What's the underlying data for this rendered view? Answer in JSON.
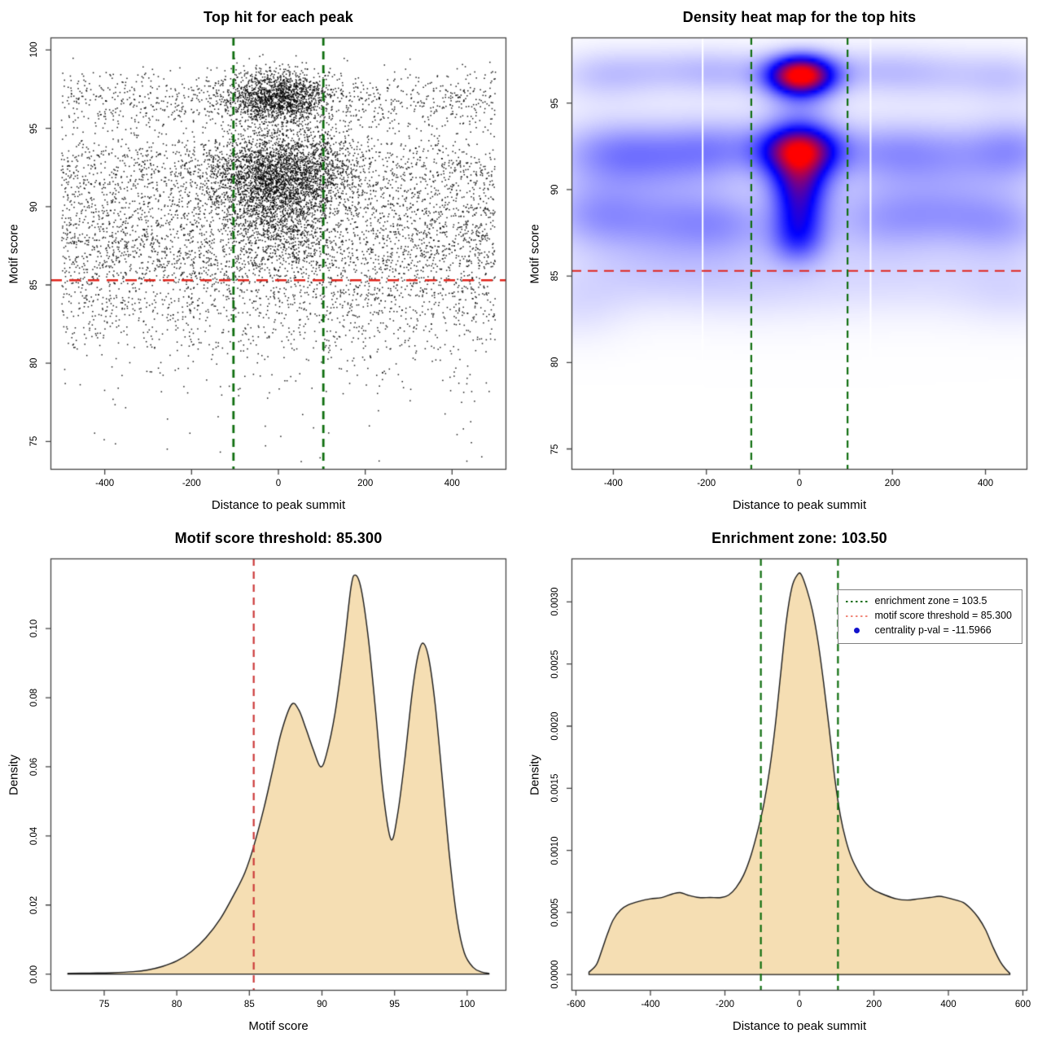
{
  "figure": {
    "background": "#FFFFFF",
    "kind": "R base-graphics 2x2 motif centrality diagnostic figure"
  },
  "colors": {
    "dark_green": "#0F6E0F",
    "red_line": "#E0251C",
    "brick_red": "#CC3B3B",
    "salmon": "#F2897C",
    "wheat_fill": "#F5DEB3",
    "curve_outline": "#1A1A1A",
    "axis": "#444444",
    "tick_text": "#111111",
    "legend_blue": "#1212CC",
    "point_black": "#000000",
    "stripe_white": "#FFFFFF",
    "heat_low": "#FFFFFF",
    "heat_mid": "#0000FF",
    "heat_high": "#FF0000"
  },
  "thresholds": {
    "motif_score_threshold": 85.3,
    "motif_score_threshold_label": "85.300",
    "enrichment_zone": 103.5,
    "enrichment_zone_label": "103.50",
    "centrality_p_val": -11.5966
  },
  "chart_data": [
    {
      "type": "scatter",
      "title": "Top hit for each peak",
      "xlabel": "Distance to peak summit",
      "ylabel": "Motif score",
      "xlim": [
        -525,
        525
      ],
      "ylim": [
        73.2,
        100.8
      ],
      "x_ticks": [
        {
          "v": -400,
          "label": "-400"
        },
        {
          "v": -200,
          "label": "-200"
        },
        {
          "v": 0,
          "label": "0"
        },
        {
          "v": 200,
          "label": "200"
        },
        {
          "v": 400,
          "label": "400"
        }
      ],
      "y_ticks": [
        {
          "v": 75,
          "label": "75"
        },
        {
          "v": 80,
          "label": "80"
        },
        {
          "v": 85,
          "label": "85"
        },
        {
          "v": 90,
          "label": "90"
        },
        {
          "v": 95,
          "label": "95"
        },
        {
          "v": 100,
          "label": "100"
        }
      ],
      "seed": 20,
      "point_size": 1.5,
      "clusters": [
        {
          "n": 1600,
          "x": [
            "n",
            0,
            58
          ],
          "y": [
            "n",
            96.9,
            0.85
          ]
        },
        {
          "n": 2600,
          "x": [
            "n",
            3,
            85
          ],
          "y": [
            "n",
            92.1,
            1.35
          ]
        },
        {
          "n": 800,
          "x": [
            "n",
            0,
            60
          ],
          "y": [
            "n",
            89.2,
            1.7
          ]
        },
        {
          "n": 950,
          "x": [
            "u",
            -500,
            500
          ],
          "y": [
            "n",
            96.8,
            0.95
          ]
        },
        {
          "n": 1450,
          "x": [
            "u",
            -500,
            500
          ],
          "y": [
            "n",
            92.2,
            1.35
          ]
        },
        {
          "n": 1900,
          "x": [
            "u",
            -500,
            500
          ],
          "y": [
            "n",
            88.4,
            1.65
          ]
        },
        {
          "n": 600,
          "x": [
            "u",
            -500,
            500
          ],
          "y": [
            "n",
            86.3,
            1.1
          ]
        },
        {
          "n": 700,
          "x": [
            "u",
            -500,
            500
          ],
          "y": [
            "n",
            84.1,
            1.35
          ]
        },
        {
          "n": 380,
          "x": [
            "u",
            -500,
            500
          ],
          "y": [
            "u",
            80.8,
            84.8
          ]
        },
        {
          "n": 130,
          "x": [
            "u",
            -500,
            500
          ],
          "y": [
            "u",
            78.0,
            81.2
          ]
        },
        {
          "n": 35,
          "x": [
            "u",
            -480,
            480
          ],
          "y": [
            "u",
            73.6,
            78.0
          ]
        }
      ],
      "hlines": [
        {
          "v": 85.3,
          "color": "red_line",
          "dash": [
            14,
            9
          ],
          "width": 2.6
        }
      ],
      "vlines": [
        {
          "v": -103.5,
          "color": "dark_green",
          "dash": [
            10,
            7
          ],
          "width": 2.8
        },
        {
          "v": 103.5,
          "color": "dark_green",
          "dash": [
            10,
            7
          ],
          "width": 2.8
        }
      ]
    },
    {
      "type": "heatmap",
      "title": "Density heat map for the top hits",
      "xlabel": "Distance to peak summit",
      "ylabel": "Motif score",
      "xlim": [
        -490,
        490
      ],
      "ylim": [
        73.8,
        98.8
      ],
      "x_ticks": [
        {
          "v": -400,
          "label": "-400"
        },
        {
          "v": -200,
          "label": "-200"
        },
        {
          "v": 0,
          "label": "0"
        },
        {
          "v": 200,
          "label": "200"
        },
        {
          "v": 400,
          "label": "400"
        }
      ],
      "y_ticks": [
        {
          "v": 75,
          "label": "75"
        },
        {
          "v": 80,
          "label": "80"
        },
        {
          "v": 85,
          "label": "85"
        },
        {
          "v": 90,
          "label": "90"
        },
        {
          "v": 95,
          "label": "95"
        }
      ],
      "color_scale": {
        "0": "white",
        "0.5": "blue",
        "1": "red",
        "gamma": 1.3
      },
      "hotspots_note": "kernel density blobs as [x, y, sigma_x, sigma_y, intensity]",
      "blobs": [
        [
          3,
          96.6,
          52,
          0.85,
          1.0
        ],
        [
          0,
          92.3,
          58,
          1.05,
          0.88
        ],
        [
          0,
          90.4,
          45,
          1.0,
          0.42
        ],
        [
          0,
          88.7,
          40,
          1.1,
          0.36
        ],
        [
          -3,
          87.0,
          42,
          1.0,
          0.28
        ],
        [
          0,
          94.6,
          55,
          0.8,
          0.13
        ],
        [
          -430,
          96.6,
          80,
          1.1,
          0.14
        ],
        [
          -280,
          96.9,
          100,
          1.0,
          0.12
        ],
        [
          -150,
          96.8,
          80,
          1.0,
          0.13
        ],
        [
          150,
          96.9,
          90,
          1.0,
          0.12
        ],
        [
          300,
          96.7,
          110,
          1.1,
          0.13
        ],
        [
          460,
          96.5,
          70,
          1.1,
          0.12
        ],
        [
          -420,
          92.1,
          90,
          1.4,
          0.22
        ],
        [
          -280,
          92.0,
          100,
          1.4,
          0.2
        ],
        [
          -160,
          92.4,
          80,
          1.3,
          0.18
        ],
        [
          170,
          92.2,
          90,
          1.3,
          0.17
        ],
        [
          320,
          92.0,
          110,
          1.4,
          0.19
        ],
        [
          470,
          92.3,
          70,
          1.4,
          0.2
        ],
        [
          -450,
          88.6,
          80,
          1.4,
          0.18
        ],
        [
          -300,
          88.2,
          110,
          1.5,
          0.19
        ],
        [
          -150,
          88.0,
          90,
          1.4,
          0.17
        ],
        [
          160,
          88.3,
          90,
          1.5,
          0.16
        ],
        [
          310,
          88.6,
          100,
          1.4,
          0.18
        ],
        [
          450,
          88.0,
          80,
          1.4,
          0.17
        ],
        [
          -350,
          85.0,
          150,
          1.5,
          0.1
        ],
        [
          -100,
          84.5,
          150,
          1.6,
          0.09
        ],
        [
          250,
          84.8,
          180,
          1.6,
          0.09
        ],
        [
          470,
          84.0,
          90,
          1.5,
          0.08
        ],
        [
          -480,
          83.0,
          80,
          1.5,
          0.08
        ],
        [
          0,
          90.5,
          520,
          5.5,
          0.05
        ]
      ],
      "white_stripes_x": [
        -208,
        153
      ],
      "hlines": [
        {
          "v": 85.3,
          "color": "red_line",
          "dash": [
            12,
            8
          ],
          "width": 2
        }
      ],
      "vlines": [
        {
          "v": -103.5,
          "color": "dark_green",
          "dash": [
            9,
            6
          ],
          "width": 2.2
        },
        {
          "v": 103.5,
          "color": "dark_green",
          "dash": [
            9,
            6
          ],
          "width": 2.2
        }
      ]
    },
    {
      "type": "area",
      "title": "Motif score threshold: 85.300",
      "xlabel": "Motif score",
      "ylabel": "Density",
      "xlim": [
        71.3,
        102.7
      ],
      "ylim": [
        -0.0048,
        0.1203
      ],
      "x_ticks": [
        {
          "v": 75,
          "label": "75"
        },
        {
          "v": 80,
          "label": "80"
        },
        {
          "v": 85,
          "label": "85"
        },
        {
          "v": 90,
          "label": "90"
        },
        {
          "v": 95,
          "label": "95"
        },
        {
          "v": 100,
          "label": "100"
        }
      ],
      "y_ticks": [
        {
          "v": 0.0,
          "label": "0.00"
        },
        {
          "v": 0.02,
          "label": "0.02"
        },
        {
          "v": 0.04,
          "label": "0.04"
        },
        {
          "v": 0.06,
          "label": "0.06"
        },
        {
          "v": 0.08,
          "label": "0.08"
        },
        {
          "v": 0.1,
          "label": "0.10"
        }
      ],
      "curve": [
        [
          72.5,
          0.0002
        ],
        [
          74.0,
          0.0003
        ],
        [
          75.5,
          0.0004
        ],
        [
          77.0,
          0.0007
        ],
        [
          78.0,
          0.0012
        ],
        [
          79.0,
          0.0022
        ],
        [
          80.0,
          0.0038
        ],
        [
          81.0,
          0.0065
        ],
        [
          82.0,
          0.0105
        ],
        [
          83.0,
          0.016
        ],
        [
          84.0,
          0.0235
        ],
        [
          84.7,
          0.0295
        ],
        [
          85.3,
          0.037
        ],
        [
          86.0,
          0.048
        ],
        [
          86.6,
          0.059
        ],
        [
          87.2,
          0.07
        ],
        [
          87.9,
          0.078
        ],
        [
          88.4,
          0.0765
        ],
        [
          88.9,
          0.071
        ],
        [
          89.4,
          0.065
        ],
        [
          89.9,
          0.06
        ],
        [
          90.3,
          0.0635
        ],
        [
          90.9,
          0.0755
        ],
        [
          91.5,
          0.094
        ],
        [
          92.0,
          0.112
        ],
        [
          92.3,
          0.1155
        ],
        [
          92.7,
          0.1115
        ],
        [
          93.2,
          0.097
        ],
        [
          93.7,
          0.076
        ],
        [
          94.2,
          0.053
        ],
        [
          94.75,
          0.039
        ],
        [
          95.2,
          0.046
        ],
        [
          95.7,
          0.062
        ],
        [
          96.2,
          0.081
        ],
        [
          96.6,
          0.092
        ],
        [
          96.95,
          0.0958
        ],
        [
          97.35,
          0.0915
        ],
        [
          97.8,
          0.078
        ],
        [
          98.3,
          0.056
        ],
        [
          98.8,
          0.0335
        ],
        [
          99.3,
          0.016
        ],
        [
          99.8,
          0.0062
        ],
        [
          100.4,
          0.002
        ],
        [
          101.0,
          0.0006
        ],
        [
          101.5,
          0.0002
        ]
      ],
      "hlines": [],
      "vlines": [
        {
          "v": 85.3,
          "color": "brick_red",
          "dash": [
            9,
            7
          ],
          "width": 2.2
        }
      ]
    },
    {
      "type": "area",
      "title": "Enrichment zone: 103.50",
      "xlabel": "Distance to peak summit",
      "ylabel": "Density",
      "xlim": [
        -612,
        612
      ],
      "ylim": [
        -0.00013,
        0.00335
      ],
      "x_ticks": [
        {
          "v": -600,
          "label": "-600"
        },
        {
          "v": -400,
          "label": "-400"
        },
        {
          "v": -200,
          "label": "-200"
        },
        {
          "v": 0,
          "label": "0"
        },
        {
          "v": 200,
          "label": "200"
        },
        {
          "v": 400,
          "label": "400"
        },
        {
          "v": 600,
          "label": "600"
        }
      ],
      "y_ticks": [
        {
          "v": 0.0,
          "label": "0.0000"
        },
        {
          "v": 0.0005,
          "label": "0.0005"
        },
        {
          "v": 0.001,
          "label": "0.0010"
        },
        {
          "v": 0.0015,
          "label": "0.0015"
        },
        {
          "v": 0.002,
          "label": "0.0020"
        },
        {
          "v": 0.0025,
          "label": "0.0025"
        },
        {
          "v": 0.003,
          "label": "0.0030"
        }
      ],
      "curve": [
        [
          -565,
          2e-05
        ],
        [
          -545,
          8e-05
        ],
        [
          -530,
          0.0002
        ],
        [
          -515,
          0.00033
        ],
        [
          -500,
          0.00044
        ],
        [
          -480,
          0.00052
        ],
        [
          -460,
          0.00056
        ],
        [
          -430,
          0.00059
        ],
        [
          -400,
          0.00061
        ],
        [
          -370,
          0.00062
        ],
        [
          -340,
          0.00065
        ],
        [
          -320,
          0.00066
        ],
        [
          -300,
          0.00064
        ],
        [
          -270,
          0.00062
        ],
        [
          -240,
          0.00062
        ],
        [
          -210,
          0.00062
        ],
        [
          -190,
          0.00064
        ],
        [
          -170,
          0.0007
        ],
        [
          -150,
          0.0008
        ],
        [
          -130,
          0.00096
        ],
        [
          -110,
          0.00118
        ],
        [
          -95,
          0.00138
        ],
        [
          -80,
          0.00165
        ],
        [
          -65,
          0.002
        ],
        [
          -50,
          0.00243
        ],
        [
          -35,
          0.00285
        ],
        [
          -20,
          0.00312
        ],
        [
          -5,
          0.00322
        ],
        [
          5,
          0.00322
        ],
        [
          20,
          0.0031
        ],
        [
          35,
          0.00293
        ],
        [
          50,
          0.00268
        ],
        [
          65,
          0.00235
        ],
        [
          80,
          0.00198
        ],
        [
          95,
          0.00158
        ],
        [
          110,
          0.00128
        ],
        [
          125,
          0.00108
        ],
        [
          140,
          0.00094
        ],
        [
          160,
          0.00082
        ],
        [
          180,
          0.00073
        ],
        [
          200,
          0.00068
        ],
        [
          230,
          0.00064
        ],
        [
          260,
          0.00061
        ],
        [
          290,
          0.0006
        ],
        [
          320,
          0.00061
        ],
        [
          350,
          0.00062
        ],
        [
          375,
          0.00063
        ],
        [
          395,
          0.00062
        ],
        [
          420,
          0.0006
        ],
        [
          440,
          0.00058
        ],
        [
          460,
          0.00053
        ],
        [
          480,
          0.00046
        ],
        [
          500,
          0.00036
        ],
        [
          520,
          0.00022
        ],
        [
          540,
          0.0001
        ],
        [
          555,
          4e-05
        ],
        [
          565,
          1e-05
        ]
      ],
      "hlines": [],
      "vlines": [
        {
          "v": -103.5,
          "color": "dark_green",
          "dash": [
            9,
            6
          ],
          "width": 2.2
        },
        {
          "v": 103.5,
          "color": "dark_green",
          "dash": [
            9,
            6
          ],
          "width": 2.2
        }
      ],
      "legend": {
        "items": [
          {
            "swatch": "green-dotted",
            "label": "enrichment zone = 103.5"
          },
          {
            "swatch": "salmon-dotted",
            "label": "motif score threshold = 85.300"
          },
          {
            "swatch": "blue-dot",
            "label": "centrality p-val = -11.5966"
          }
        ]
      }
    }
  ]
}
